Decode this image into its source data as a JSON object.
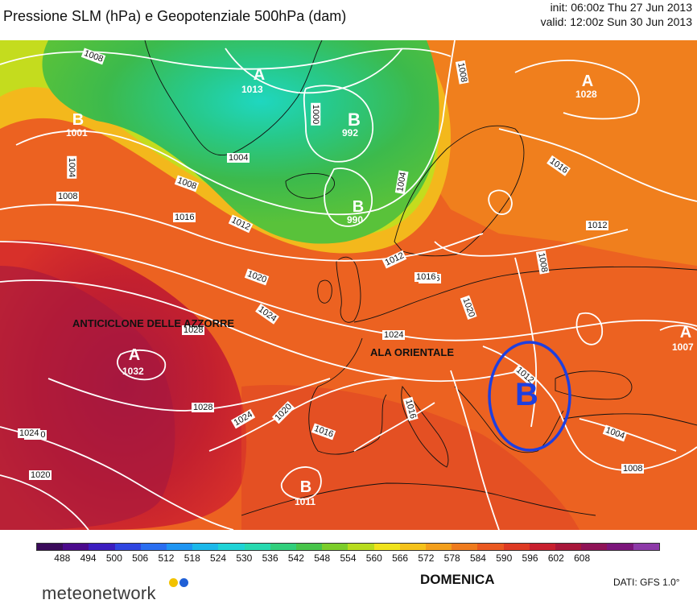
{
  "title": "Pressione SLM (hPa) e Geopotenziale 500hPa (dam)",
  "run": {
    "init": "init: 06:00z Thu 27 Jun 2013",
    "valid": "valid: 12:00z Sun 30 Jun 2013"
  },
  "annotations": {
    "azores": "ANTICICLONE DELLE AZZORRE",
    "oriental": "ALA ORIENTALE",
    "circle_letter": "B"
  },
  "pressure_centers": [
    {
      "type": "A",
      "value": "1013"
    },
    {
      "type": "B",
      "value": "992"
    },
    {
      "type": "B",
      "value": "990"
    },
    {
      "type": "B",
      "value": "1001"
    },
    {
      "type": "A",
      "value": "1028"
    },
    {
      "type": "A",
      "value": "1032"
    },
    {
      "type": "B",
      "value": "1011"
    },
    {
      "type": "A",
      "value": "1007"
    }
  ],
  "isobar_labels": [
    "1008",
    "1008",
    "1000",
    "1004",
    "1004",
    "1008",
    "1004",
    "1008",
    "1016",
    "1012",
    "1016",
    "1016",
    "1012",
    "1012",
    "1008",
    "1020",
    "1024",
    "1028",
    "1024",
    "1016",
    "1020",
    "1028",
    "1024",
    "1020",
    "1020",
    "1016",
    "1016",
    "1012",
    "1024",
    "1020",
    "1004",
    "1008"
  ],
  "colorbar": {
    "ticks": [
      "488",
      "494",
      "500",
      "506",
      "512",
      "518",
      "524",
      "530",
      "536",
      "542",
      "548",
      "554",
      "560",
      "566",
      "572",
      "578",
      "584",
      "590",
      "596",
      "602",
      "608"
    ],
    "colors": [
      "#3a0a5a",
      "#4b0a8c",
      "#3b1dbf",
      "#2f45e0",
      "#2a6ef0",
      "#1f95f2",
      "#1cb8ea",
      "#1fd3d6",
      "#27d9b0",
      "#31cf7c",
      "#48c44a",
      "#7ccd2a",
      "#b8dc1e",
      "#f0e31c",
      "#f5c21a",
      "#f39f1c",
      "#ef7b1e",
      "#ea5820",
      "#de3a23",
      "#c81f2e",
      "#a8163a",
      "#8f1356",
      "#7b157a",
      "#8d3aa8"
    ]
  },
  "day": "DOMENICA",
  "source": "DATI:  GFS  1.0°",
  "brand": "meteonetwork",
  "brand_colors": {
    "yellow": "#f2c200",
    "blue": "#1f5fd6"
  },
  "highlight_color": "#1d3fe0"
}
